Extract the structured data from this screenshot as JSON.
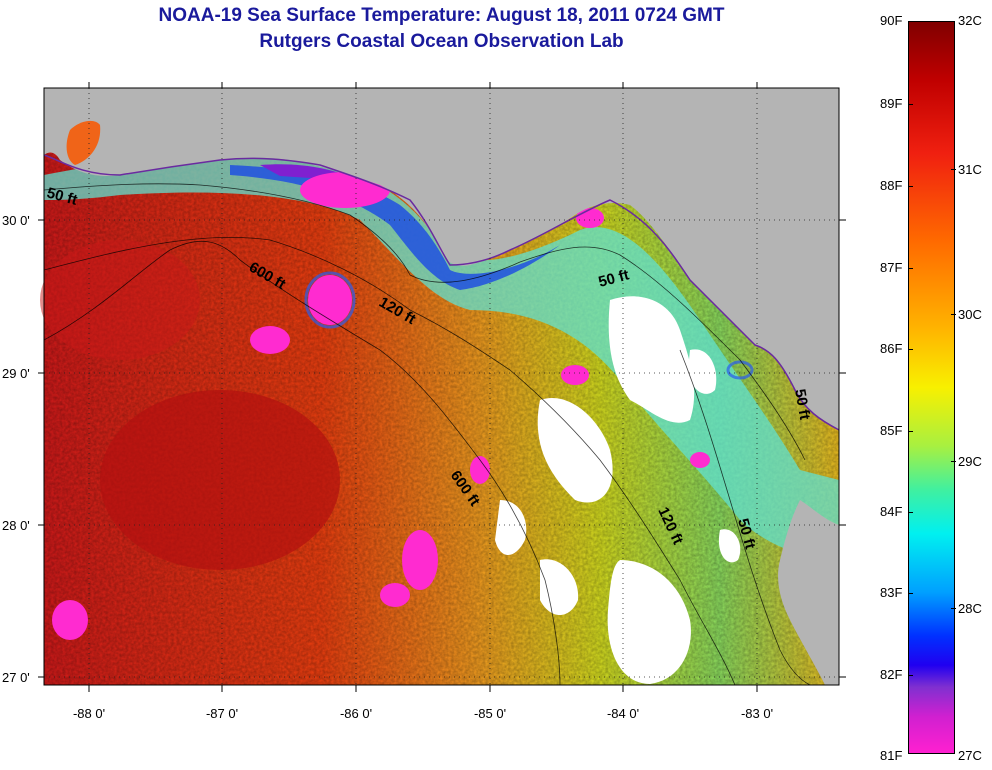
{
  "header": {
    "title": "NOAA-19 Sea Surface Temperature:  August 18, 2011 0724 GMT",
    "subtitle": "Rutgers Coastal Ocean Observation Lab"
  },
  "map": {
    "region": "Northeastern Gulf of Mexico / Florida Big Bend",
    "lon_range": [
      -88.33,
      -82.5
    ],
    "lat_range": [
      26.97,
      30.85
    ],
    "lon_ticks": [
      "-88 0'",
      "-87 0'",
      "-86 0'",
      "-85 0'",
      "-84 0'",
      "-83 0'"
    ],
    "lat_ticks": [
      "30 0'",
      "29 0'",
      "28 0'",
      "27 0'"
    ],
    "land_color": "#b4b4b4",
    "cloud_color": "#ffffff",
    "contour_labels": [
      "50 ft",
      "600 ft",
      "120 ft",
      "50 ft",
      "600 ft",
      "120 ft",
      "50 ft",
      "50 ft"
    ]
  },
  "colorbar": {
    "fahrenheit_labels": [
      "90F",
      "89F",
      "88F",
      "87F",
      "86F",
      "85F",
      "84F",
      "83F",
      "82F",
      "81F"
    ],
    "celsius_labels": [
      "32C",
      "31C",
      "30C",
      "29C",
      "28C",
      "27C"
    ],
    "range_f": [
      81,
      90
    ]
  }
}
